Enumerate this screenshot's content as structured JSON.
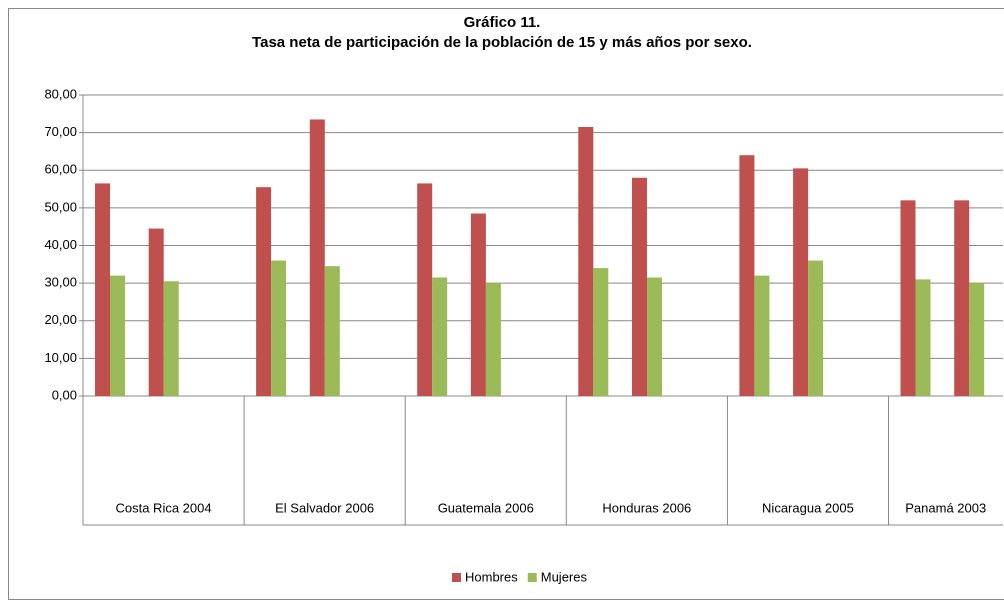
{
  "chart_data": {
    "type": "bar",
    "title": [
      "Gráfico 11.",
      "Tasa neta de participación de la población de 15 y más años por sexo."
    ],
    "groups": [
      "Costa Rica 2004",
      "El Salvador 2006",
      "Guatemala 2006",
      "Honduras 2006",
      "Nicaragua 2005",
      "Panamá 2003"
    ],
    "categories": [
      null,
      null,
      null,
      null,
      null,
      null,
      null,
      null,
      null,
      null,
      null,
      null
    ],
    "series": [
      {
        "name": "Hombres",
        "color": "#c0504d",
        "values": [
          56.5,
          44.5,
          55.5,
          73.5,
          56.5,
          48.5,
          71.5,
          58,
          64,
          60.5,
          52,
          52
        ]
      },
      {
        "name": "Mujeres",
        "color": "#9bbb59",
        "values": [
          32,
          30.5,
          36,
          34.5,
          31.5,
          30,
          34,
          31.5,
          32,
          36,
          31,
          30
        ]
      }
    ],
    "ylim": [
      0,
      80
    ],
    "yticks": [
      {
        "value": 0,
        "label": "0,00"
      },
      {
        "value": 10,
        "label": "10,00"
      },
      {
        "value": 20,
        "label": "20,00"
      },
      {
        "value": 30,
        "label": "30,00"
      },
      {
        "value": 40,
        "label": "40,00"
      },
      {
        "value": 50,
        "label": "50,00"
      },
      {
        "value": 60,
        "label": "60,00"
      },
      {
        "value": 70,
        "label": "70,00"
      },
      {
        "value": 80,
        "label": "80,00"
      }
    ],
    "grid": true,
    "legend": "bottom"
  }
}
